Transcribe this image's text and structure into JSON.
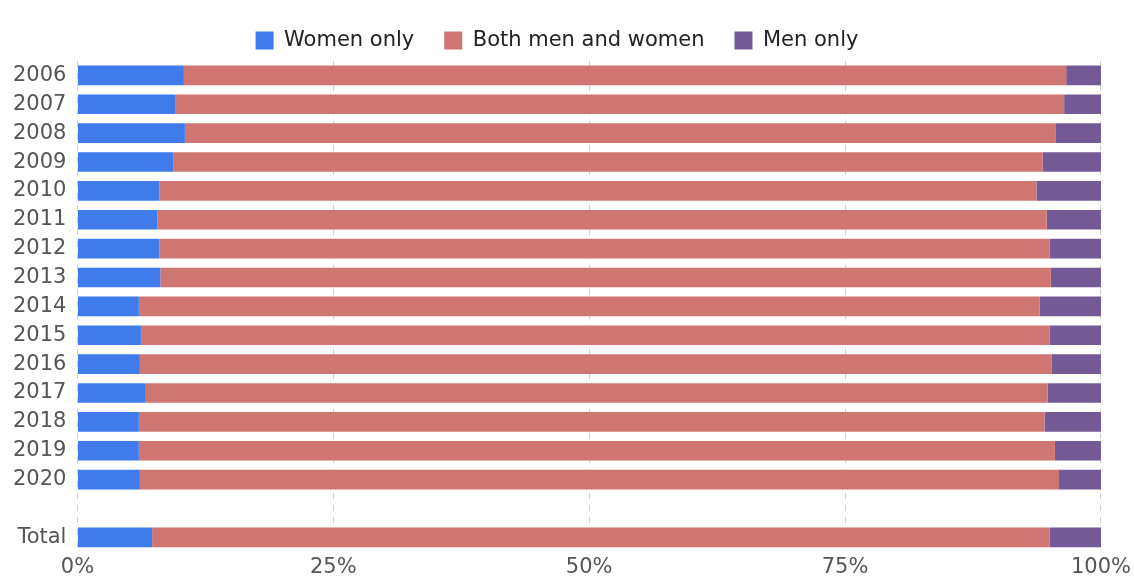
{
  "chart_data": {
    "type": "bar",
    "orientation": "horizontal",
    "stacked": true,
    "legend": "top",
    "grid": "x",
    "categories": [
      "2006",
      "2007",
      "2008",
      "2009",
      "2010",
      "2011",
      "2012",
      "2013",
      "2014",
      "2015",
      "2016",
      "2017",
      "2018",
      "2019",
      "2020",
      null,
      "Total"
    ],
    "series": [
      {
        "name": "Women only",
        "color": "#3f7bea",
        "values": [
          10.4,
          9.6,
          10.5,
          9.4,
          8.0,
          7.8,
          8.0,
          8.1,
          6.0,
          6.2,
          6.1,
          6.6,
          6.0,
          6.0,
          6.1,
          null,
          7.3
        ]
      },
      {
        "name": "Both men and women",
        "color": "#cf7672",
        "values": [
          86.2,
          86.8,
          85.1,
          84.9,
          85.7,
          86.9,
          87.0,
          87.0,
          88.0,
          88.8,
          89.1,
          88.2,
          88.5,
          89.5,
          89.8,
          null,
          87.7
        ]
      },
      {
        "name": "Men only",
        "color": "#735a96",
        "values": [
          3.4,
          3.6,
          4.4,
          5.7,
          6.3,
          5.3,
          5.0,
          4.9,
          6.0,
          5.0,
          4.8,
          5.2,
          5.5,
          4.5,
          4.1,
          null,
          5.0
        ]
      }
    ],
    "xlim": [
      0,
      100
    ],
    "xticks": [
      {
        "value": 0,
        "label": "0%"
      },
      {
        "value": 25,
        "label": "25%"
      },
      {
        "value": 50,
        "label": "50%"
      },
      {
        "value": 75,
        "label": "75%"
      },
      {
        "value": 100,
        "label": "100%"
      }
    ]
  }
}
